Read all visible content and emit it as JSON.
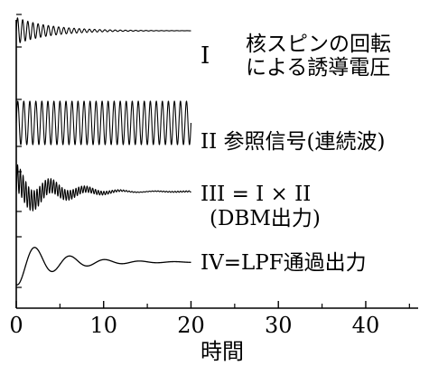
{
  "chart_data": {
    "type": "line",
    "xlabel": "時間",
    "xlim": [
      0,
      46
    ],
    "x_ticks": [
      0,
      10,
      20,
      30,
      40
    ],
    "x_tick_labels": [
      "0",
      "10",
      "20",
      "30",
      "40"
    ],
    "y_ticks_per_panel": 2,
    "series": [
      {
        "name": "I",
        "label_lines": [
          "I",
          "核スピンの回転",
          "による誘導電圧"
        ],
        "x_range": [
          0,
          20
        ],
        "cycles": 34,
        "amplitude_start": 1.0,
        "decay": 0.22,
        "shape": "decaying-sine"
      },
      {
        "name": "II",
        "label_lines": [
          "II 参照信号(連続波)"
        ],
        "x_range": [
          0,
          20
        ],
        "cycles": 29,
        "amplitude_start": 1.0,
        "decay": 0,
        "shape": "continuous-sine"
      },
      {
        "name": "III",
        "label_lines": [
          "III = I × II",
          "(DBM出力)"
        ],
        "x_range": [
          0,
          20
        ],
        "shape": "product-of-I-and-II"
      },
      {
        "name": "IV",
        "label_lines": [
          "IV=LPF通過出力"
        ],
        "x_range": [
          0,
          20
        ],
        "cycles": 5,
        "amplitude_start": 1.0,
        "decay": 0.22,
        "shape": "decaying-sine-low-frequency"
      }
    ]
  }
}
